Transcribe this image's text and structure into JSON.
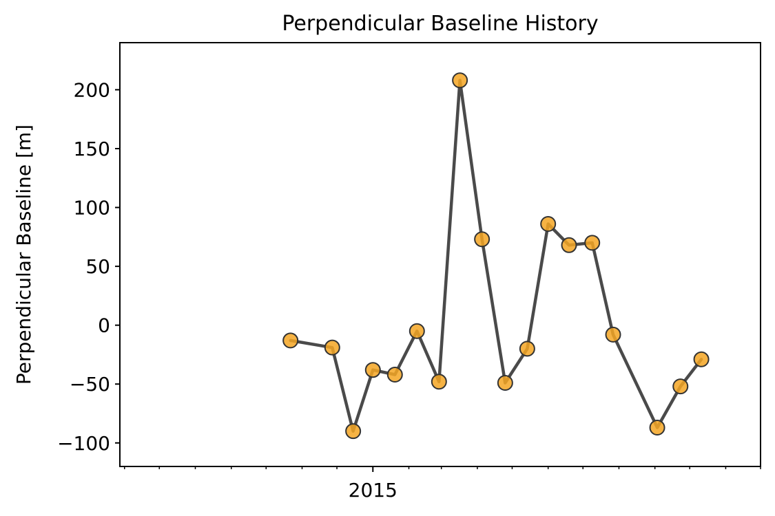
{
  "chart_data": {
    "type": "line",
    "title": "Perpendicular Baseline History",
    "xlabel": "",
    "ylabel": "Perpendicular Baseline [m]",
    "ylim": [
      -120,
      240
    ],
    "yticks": [
      -100,
      -50,
      0,
      50,
      100,
      150,
      200
    ],
    "ytick_labels": [
      "−100",
      "−50",
      "0",
      "50",
      "100",
      "150",
      "200"
    ],
    "xlim": [
      "2014-05-28",
      "2015-12-01"
    ],
    "xticks_major": [
      {
        "date": "2015-01-01",
        "label": "2015"
      }
    ],
    "xticks_minor": [
      "2014-06-01",
      "2014-07-01",
      "2014-08-01",
      "2014-09-01",
      "2014-10-01",
      "2014-11-01",
      "2014-12-01",
      "2015-02-01",
      "2015-03-01",
      "2015-04-01",
      "2015-05-01",
      "2015-06-01",
      "2015-07-01",
      "2015-08-01",
      "2015-09-01",
      "2015-10-01",
      "2015-11-01",
      "2015-12-01"
    ],
    "grid": false,
    "marker_color": "#f5a623",
    "line_color": "#4a4a4a",
    "series": [
      {
        "x": [
          "2014-10-22",
          "2014-11-27",
          "2014-12-15",
          "2015-01-01",
          "2015-01-20",
          "2015-02-08",
          "2015-02-27",
          "2015-03-17",
          "2015-04-05",
          "2015-04-25",
          "2015-05-14",
          "2015-06-01",
          "2015-06-19",
          "2015-07-09",
          "2015-07-27",
          "2015-09-03",
          "2015-09-23",
          "2015-10-11"
        ],
        "y": [
          -13,
          -19,
          -90,
          -38,
          -42,
          -5,
          -48,
          208,
          73,
          -49,
          -20,
          86,
          68,
          70,
          -8,
          -87,
          -52,
          -29
        ]
      }
    ]
  }
}
